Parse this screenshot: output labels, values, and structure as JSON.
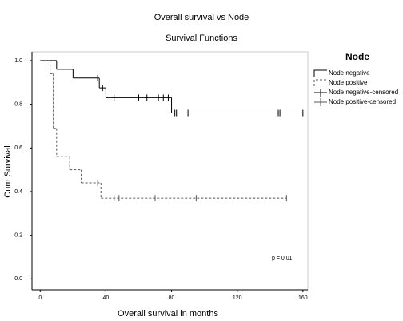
{
  "chart_data": {
    "type": "survival",
    "title": "Overall survival vs Node",
    "subtitle": "Survival Functions",
    "x_label": "Overall survival in months",
    "y_label": "Cum Survival",
    "legend_title": "Node",
    "annotation": "p = 0.01",
    "xlim": [
      -5,
      163
    ],
    "ylim": [
      -0.05,
      1.04
    ],
    "xticks": [
      0,
      40,
      80,
      120,
      160
    ],
    "yticks": [
      {
        "value": 0,
        "label": "0.0"
      },
      {
        "value": 0.2,
        "label": "0.2"
      },
      {
        "value": 0.4,
        "label": "0.4"
      },
      {
        "value": 0.6,
        "label": "0.6"
      },
      {
        "value": 0.8,
        "label": "0.8"
      },
      {
        "value": 1,
        "label": "1.0"
      }
    ],
    "series": [
      {
        "name": "Node negative",
        "censored_name": "Node negative-censored",
        "color": "#000000",
        "dashed": false,
        "x": [
          0,
          10,
          20,
          36,
          40,
          80,
          160
        ],
        "values": [
          1,
          0.96,
          0.92,
          0.875,
          0.83,
          0.76,
          0.76
        ],
        "censored_x": [
          35,
          38,
          45,
          60,
          65,
          72,
          75,
          78,
          82,
          83,
          90,
          145,
          146,
          160
        ],
        "censored_values": [
          0.92,
          0.875,
          0.83,
          0.83,
          0.83,
          0.83,
          0.83,
          0.83,
          0.76,
          0.76,
          0.76,
          0.76,
          0.76,
          0.76
        ]
      },
      {
        "name": "Node positive",
        "censored_name": "Node positive-censored",
        "color": "#555555",
        "dashed": true,
        "x": [
          0,
          6,
          8,
          10,
          18,
          25,
          37,
          150
        ],
        "values": [
          1,
          0.94,
          0.69,
          0.56,
          0.5,
          0.44,
          0.37,
          0.37
        ],
        "censored_x": [
          35,
          45,
          48,
          70,
          95,
          150
        ],
        "censored_values": [
          0.44,
          0.37,
          0.37,
          0.37,
          0.37,
          0.37
        ]
      }
    ]
  }
}
